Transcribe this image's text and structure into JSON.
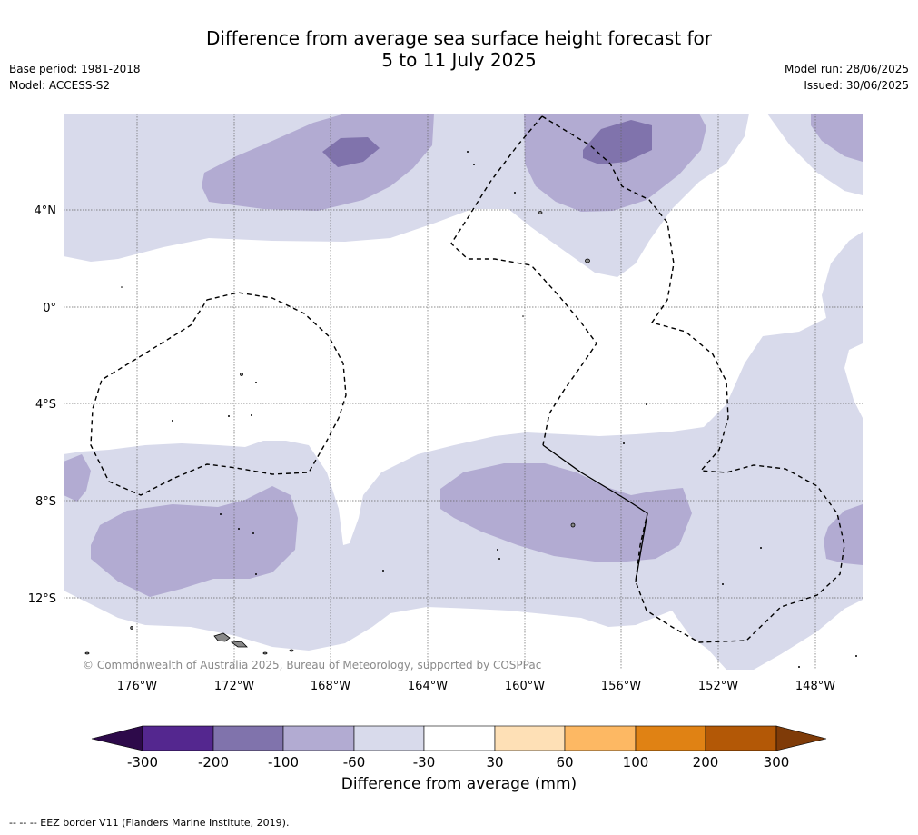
{
  "header": {
    "title_line1": "Difference from average sea surface height forecast for",
    "title_line2": "5 to 11 July 2025",
    "base_period": "Base period: 1981-2018",
    "model": "Model: ACCESS-S2",
    "model_run": "Model run: 28/06/2025",
    "issued": "Issued: 30/06/2025"
  },
  "map": {
    "lat_labels": [
      "4°N",
      "0°",
      "4°S",
      "8°S",
      "12°S"
    ],
    "lon_labels": [
      "176°W",
      "172°W",
      "168°W",
      "164°W",
      "160°W",
      "156°W",
      "152°W",
      "148°W"
    ],
    "copyright": "© Commonwealth of Australia 2025, Bureau of Meteorology, supported by COSPPac"
  },
  "legend": {
    "ticks": [
      "-300",
      "-200",
      "-100",
      "-60",
      "-30",
      "30",
      "60",
      "100",
      "200",
      "300"
    ],
    "label": "Difference from average (mm)",
    "colors": {
      "below_-300": "#2d0a4a",
      "-300_-200": "#54278f",
      "-200_-100": "#8073ac",
      "-100_-60": "#b2abd2",
      "-60_-30": "#d8daeb",
      "-30_30": "#ffffff",
      "30_60": "#fee0b6",
      "60_100": "#fdb863",
      "100_200": "#e08214",
      "200_300": "#b35806",
      "above_300": "#7f3b08"
    }
  },
  "footer": {
    "eez_note": "--  --  -- EEZ border V11 (Flanders Marine Institute, 2019)."
  }
}
